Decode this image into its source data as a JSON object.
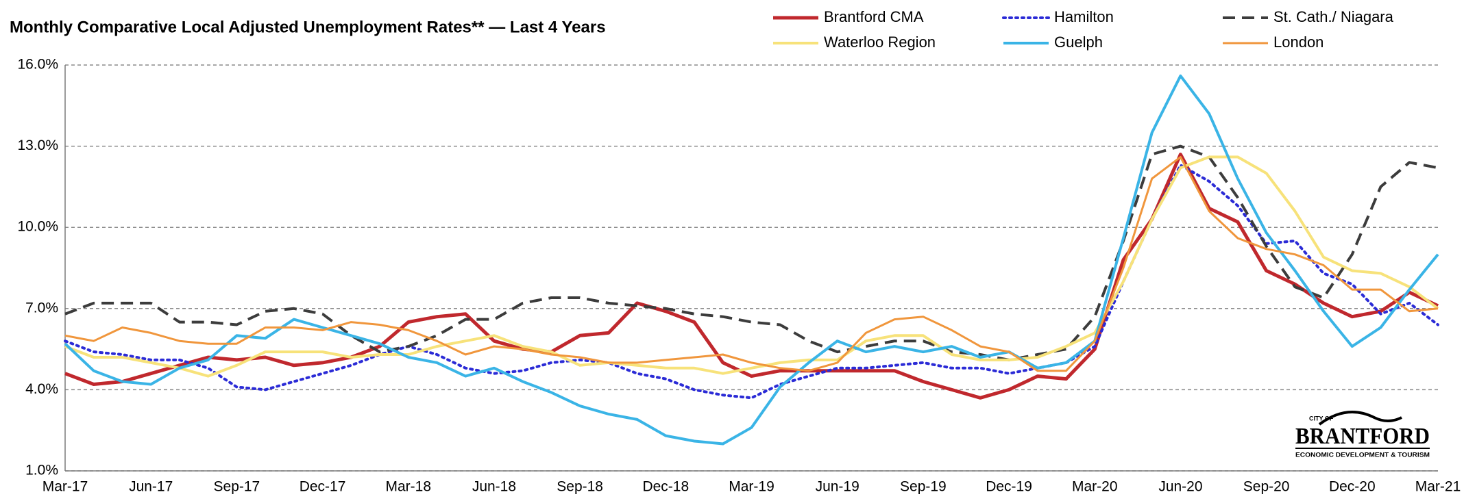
{
  "chart_data": {
    "type": "line",
    "title": "Monthly Comparative Local Adjusted Unemployment Rates**  —  Last 4 Years",
    "categories": [
      "Mar-17",
      null,
      null,
      "Jun-17",
      null,
      null,
      "Sep-17",
      null,
      null,
      "Dec-17",
      null,
      null,
      "Mar-18",
      null,
      null,
      "Jun-18",
      null,
      null,
      "Sep-18",
      null,
      null,
      "Dec-18",
      null,
      null,
      "Mar-19",
      null,
      null,
      "Jun-19",
      null,
      null,
      "Sep-19",
      null,
      null,
      "Dec-19",
      null,
      null,
      "Mar-20",
      null,
      null,
      "Jun-20",
      null,
      null,
      "Sep-20",
      null,
      null,
      "Dec-20",
      null,
      null,
      "Mar-21"
    ],
    "ylim": [
      1,
      16
    ],
    "yticks": [
      {
        "value": 1,
        "label": "1.0%"
      },
      {
        "value": 4,
        "label": "4.0%"
      },
      {
        "value": 7,
        "label": "7.0%"
      },
      {
        "value": 10,
        "label": "10.0%"
      },
      {
        "value": 13,
        "label": "13.0%"
      },
      {
        "value": 16,
        "label": "16.0%"
      }
    ],
    "grid": true,
    "legend": "top-right",
    "series": [
      {
        "name": "Brantford CMA",
        "color": "#c0282d",
        "style": "solid",
        "width": 5,
        "values": [
          4.6,
          4.2,
          4.3,
          4.6,
          4.9,
          5.2,
          5.1,
          5.2,
          4.9,
          5.0,
          5.2,
          5.6,
          6.5,
          6.7,
          6.8,
          5.8,
          5.5,
          5.4,
          6.0,
          6.1,
          7.2,
          6.9,
          6.5,
          5.0,
          4.5,
          4.7,
          4.7,
          4.7,
          4.7,
          4.7,
          4.3,
          4.0,
          3.7,
          4.0,
          4.5,
          4.4,
          5.5,
          8.8,
          10.3,
          12.7,
          10.7,
          10.2,
          8.4,
          7.9,
          7.2,
          6.7,
          6.9,
          7.6,
          7.1
        ]
      },
      {
        "name": "Hamilton",
        "color": "#2b2bd6",
        "style": "dotted",
        "width": 4,
        "values": [
          5.8,
          5.4,
          5.3,
          5.1,
          5.1,
          4.8,
          4.1,
          4.0,
          4.3,
          4.6,
          4.9,
          5.3,
          5.6,
          5.3,
          4.8,
          4.6,
          4.7,
          5.0,
          5.1,
          5.0,
          4.6,
          4.4,
          4.0,
          3.8,
          3.7,
          4.2,
          4.5,
          4.8,
          4.8,
          4.9,
          5.0,
          4.8,
          4.8,
          4.6,
          4.8,
          5.0,
          5.6,
          8.0,
          10.3,
          12.3,
          11.7,
          10.8,
          9.4,
          9.5,
          8.3,
          7.9,
          6.8,
          7.2,
          6.4
        ]
      },
      {
        "name": "St. Cath./ Niagara",
        "color": "#3c3c3c",
        "style": "dashed",
        "width": 4,
        "values": [
          6.8,
          7.2,
          7.2,
          7.2,
          6.5,
          6.5,
          6.4,
          6.9,
          7.0,
          6.8,
          6.0,
          5.4,
          5.6,
          6.0,
          6.6,
          6.6,
          7.2,
          7.4,
          7.4,
          7.2,
          7.1,
          7.0,
          6.8,
          6.7,
          6.5,
          6.4,
          5.8,
          5.4,
          5.6,
          5.8,
          5.8,
          5.4,
          5.3,
          5.1,
          5.3,
          5.5,
          6.7,
          9.5,
          12.7,
          13.0,
          12.6,
          11.1,
          9.3,
          7.8,
          7.4,
          9.0,
          11.5,
          12.4,
          12.2
        ]
      },
      {
        "name": "Waterloo Region",
        "color": "#f7e27a",
        "style": "solid",
        "width": 4,
        "values": [
          5.6,
          5.2,
          5.2,
          5.0,
          4.8,
          4.5,
          4.9,
          5.4,
          5.4,
          5.4,
          5.2,
          5.3,
          5.3,
          5.6,
          5.8,
          6.0,
          5.6,
          5.4,
          4.9,
          5.0,
          4.9,
          4.8,
          4.8,
          4.6,
          4.8,
          5.0,
          5.1,
          5.1,
          5.8,
          6.0,
          6.0,
          5.3,
          5.1,
          5.1,
          5.2,
          5.6,
          6.1,
          8.0,
          10.3,
          12.2,
          12.6,
          12.6,
          12.0,
          10.6,
          8.9,
          8.4,
          8.3,
          7.8,
          7.0
        ]
      },
      {
        "name": "Guelph",
        "color": "#3ab4e6",
        "style": "solid",
        "width": 4,
        "values": [
          5.7,
          4.7,
          4.3,
          4.2,
          4.8,
          5.1,
          6.0,
          5.9,
          6.6,
          6.3,
          6.0,
          5.7,
          5.2,
          5.0,
          4.5,
          4.8,
          4.3,
          3.9,
          3.4,
          3.1,
          2.9,
          2.3,
          2.1,
          2.0,
          2.6,
          4.1,
          5.0,
          5.8,
          5.4,
          5.6,
          5.4,
          5.6,
          5.2,
          5.4,
          4.8,
          5.0,
          5.8,
          9.6,
          13.5,
          15.6,
          14.2,
          11.8,
          9.8,
          8.4,
          6.9,
          5.6,
          6.3,
          7.7,
          9.0
        ]
      },
      {
        "name": "London",
        "color": "#f0963c",
        "style": "solid",
        "width": 3,
        "values": [
          6.0,
          5.8,
          6.3,
          6.1,
          5.8,
          5.7,
          5.7,
          6.3,
          6.3,
          6.2,
          6.5,
          6.4,
          6.2,
          5.8,
          5.3,
          5.6,
          5.5,
          5.3,
          5.2,
          5.0,
          5.0,
          5.1,
          5.2,
          5.3,
          5.0,
          4.8,
          4.7,
          5.0,
          6.1,
          6.6,
          6.7,
          6.2,
          5.6,
          5.4,
          4.7,
          4.7,
          5.8,
          8.5,
          11.8,
          12.6,
          10.6,
          9.6,
          9.2,
          9.0,
          8.6,
          7.7,
          7.7,
          6.9,
          7.0
        ]
      }
    ]
  },
  "logo": {
    "top": "CITY OF",
    "name": "BRANTFORD",
    "tagline": "ECONOMIC DEVELOPMENT & TOURISM"
  }
}
